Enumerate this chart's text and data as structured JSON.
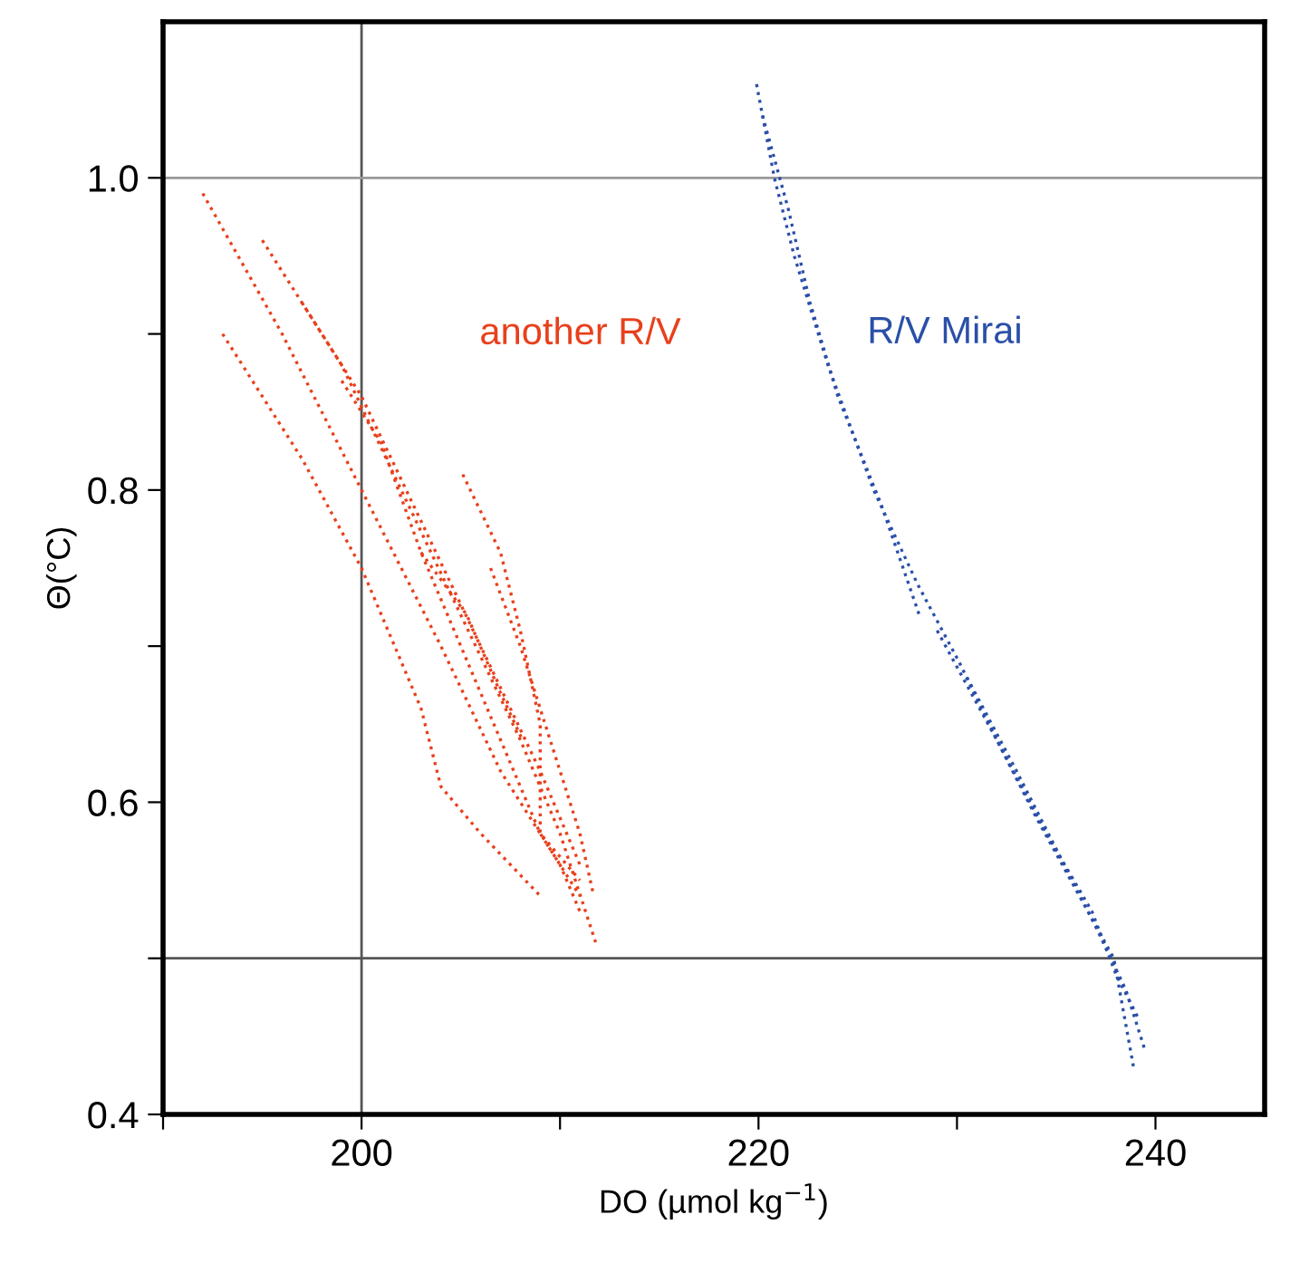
{
  "chart_data": {
    "type": "line",
    "xlabel": "DO (µmol kg$^{−1}$)",
    "ylabel": "Θ(°C)",
    "xlim": [
      190,
      245.5
    ],
    "ylim": [
      0.4,
      1.1
    ],
    "xticks": [
      {
        "value": 190,
        "label": null
      },
      200,
      {
        "value": 210,
        "label": null
      },
      220,
      {
        "value": 230,
        "label": null
      },
      240
    ],
    "yticks": [
      0.4,
      {
        "value": 0.5,
        "label": null
      },
      0.6,
      {
        "value": 0.7,
        "label": null
      },
      0.8,
      {
        "value": 0.9,
        "label": null
      },
      {
        "value": 1.0,
        "label": "1.0"
      }
    ],
    "grid": false,
    "legend": false,
    "marker": "none",
    "line_style": "dotted",
    "ref_lines": [
      {
        "axis": "x",
        "value": 200,
        "label": null,
        "color": "#555555"
      },
      {
        "axis": "y",
        "value": 1.0,
        "label": null,
        "color": "#999999"
      },
      {
        "axis": "y",
        "value": 0.5,
        "label": null,
        "color": "#555555"
      }
    ],
    "series": [
      {
        "name": "another R/V",
        "color": "#e8401c",
        "x": [
          192,
          196,
          200,
          204,
          207,
          210,
          211
        ],
        "values": [
          0.99,
          0.9,
          0.8,
          0.7,
          0.62,
          0.56,
          0.53
        ]
      },
      {
        "color": "#e8401c",
        "x": [
          195,
          199,
          202,
          205,
          208,
          210,
          211.8
        ],
        "values": [
          0.96,
          0.88,
          0.8,
          0.72,
          0.64,
          0.58,
          0.51
        ]
      },
      {
        "color": "#e8401c",
        "x": [
          197,
          200,
          203,
          206,
          209,
          211
        ],
        "values": [
          0.92,
          0.86,
          0.78,
          0.7,
          0.62,
          0.56
        ]
      },
      {
        "color": "#e8401c",
        "x": [
          199,
          201,
          203,
          205,
          207,
          209,
          211
        ],
        "values": [
          0.87,
          0.83,
          0.76,
          0.7,
          0.64,
          0.58,
          0.54
        ]
      },
      {
        "color": "#e8401c",
        "x": [
          193,
          197,
          200,
          203,
          204,
          206,
          209
        ],
        "values": [
          0.9,
          0.82,
          0.75,
          0.66,
          0.61,
          0.58,
          0.54
        ]
      },
      {
        "color": "#e8401c",
        "x": [
          205.1,
          207,
          208,
          209,
          209,
          211
        ],
        "values": [
          0.81,
          0.76,
          0.71,
          0.65,
          0.58,
          0.55
        ]
      },
      {
        "color": "#e8401c",
        "x": [
          206.5,
          208,
          209,
          210,
          211,
          211.7
        ],
        "values": [
          0.75,
          0.7,
          0.66,
          0.62,
          0.58,
          0.54
        ]
      },
      {
        "color": "#e8401c",
        "x": [
          203,
          205.3,
          207,
          208.1
        ],
        "values": [
          0.76,
          0.72,
          0.67,
          0.64
        ]
      },
      {
        "name": "R/V Mirai",
        "color": "#2a4fa8",
        "x": [
          219.9,
          220.8,
          221.8,
          223.5,
          225.8,
          228,
          230.1,
          232,
          234,
          236.6,
          237.9,
          238.9
        ],
        "values": [
          1.06,
          1.0,
          0.95,
          0.88,
          0.8,
          0.74,
          0.69,
          0.64,
          0.59,
          0.53,
          0.5,
          0.43
        ]
      },
      {
        "color": "#2a4fa8",
        "x": [
          220.2,
          221.5,
          222.6,
          224,
          226.2,
          228.1
        ],
        "values": [
          1.04,
          0.98,
          0.92,
          0.86,
          0.79,
          0.72
        ]
      },
      {
        "color": "#2a4fa8",
        "x": [
          230.5,
          233,
          235,
          237,
          238.5,
          239.5
        ],
        "values": [
          0.68,
          0.62,
          0.57,
          0.52,
          0.48,
          0.44
        ]
      },
      {
        "color": "#2a4fa8",
        "x": [
          229,
          232,
          234.5,
          236.8,
          238,
          239.2
        ],
        "values": [
          0.71,
          0.64,
          0.58,
          0.53,
          0.49,
          0.46
        ]
      }
    ]
  }
}
